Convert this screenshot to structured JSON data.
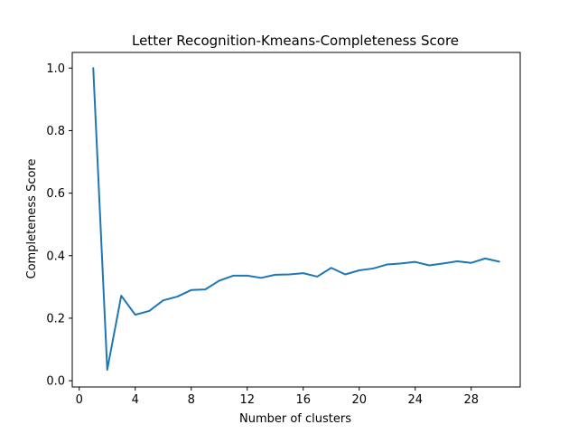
{
  "chart_data": {
    "type": "line",
    "title": "Letter Recognition-Kmeans-Completeness Score",
    "xlabel": "Number of clusters",
    "ylabel": "Completeness Score",
    "xlim": [
      -0.5,
      31.5
    ],
    "ylim": [
      -0.02,
      1.05
    ],
    "xticks": [
      0,
      4,
      8,
      12,
      16,
      20,
      24,
      28
    ],
    "xtick_labels": [
      "0",
      "4",
      "8",
      "12",
      "16",
      "20",
      "24",
      "28"
    ],
    "yticks": [
      0.0,
      0.2,
      0.4,
      0.6,
      0.8,
      1.0
    ],
    "ytick_labels": [
      "0.0",
      "0.2",
      "0.4",
      "0.6",
      "0.8",
      "1.0"
    ],
    "grid": false,
    "series": [
      {
        "color": "#1f77b4",
        "x": [
          1,
          2,
          3,
          4,
          5,
          6,
          7,
          8,
          9,
          10,
          11,
          12,
          13,
          14,
          15,
          16,
          17,
          18,
          19,
          20,
          21,
          22,
          23,
          24,
          25,
          26,
          27,
          28,
          29,
          30
        ],
        "y": [
          1.0,
          0.035,
          0.272,
          0.211,
          0.223,
          0.257,
          0.269,
          0.29,
          0.292,
          0.32,
          0.336,
          0.336,
          0.329,
          0.339,
          0.34,
          0.344,
          0.333,
          0.361,
          0.34,
          0.353,
          0.359,
          0.372,
          0.375,
          0.38,
          0.369,
          0.375,
          0.382,
          0.377,
          0.391,
          0.381
        ]
      }
    ]
  }
}
